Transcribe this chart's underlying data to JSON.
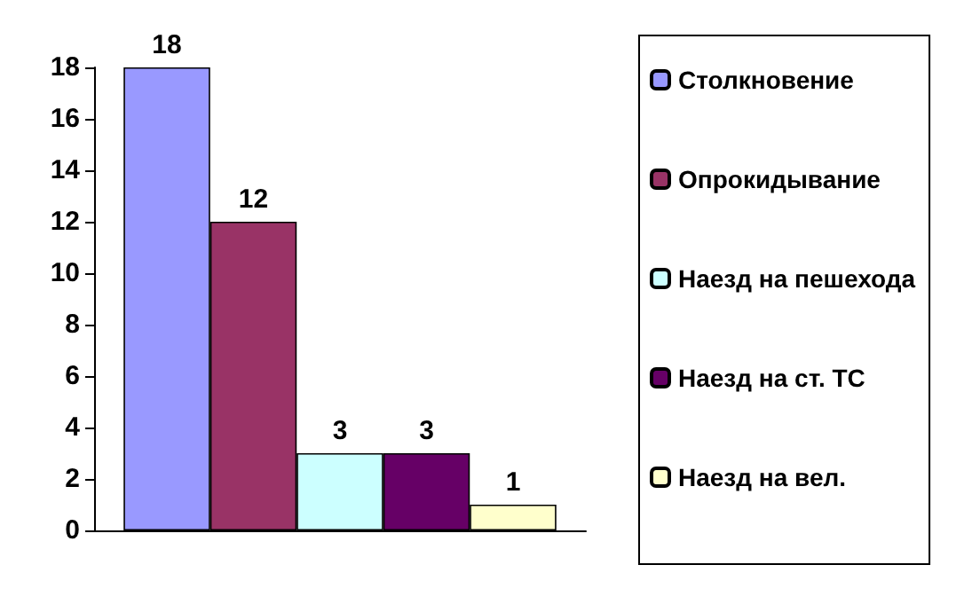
{
  "chart_data": {
    "type": "bar",
    "categories": [
      null
    ],
    "series": [
      {
        "name": "Столкновение",
        "color": "#9999ff",
        "values": [
          18
        ]
      },
      {
        "name": "Опрокидывание",
        "color": "#993366",
        "values": [
          12
        ]
      },
      {
        "name": "Наезд на пешехода",
        "color": "#ccffff",
        "values": [
          3
        ]
      },
      {
        "name": "Наезд на ст. ТС",
        "color": "#660066",
        "values": [
          3
        ]
      },
      {
        "name": "Наезд на вел.",
        "color": "#ffffcc",
        "values": [
          1
        ]
      }
    ],
    "ylim": [
      0,
      18
    ],
    "yticks": [
      0,
      2,
      4,
      6,
      8,
      10,
      12,
      14,
      16,
      18
    ],
    "grid": false,
    "legend": "right",
    "data_labels": true
  }
}
